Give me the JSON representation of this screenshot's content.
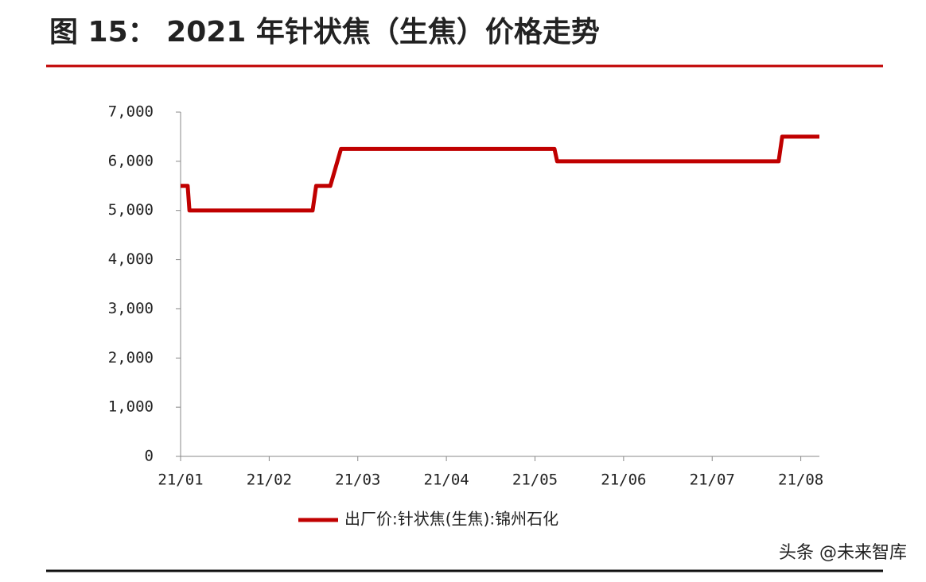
{
  "chart_data": {
    "type": "line",
    "title": "图 15： 2021 年针状焦（生焦）价格走势",
    "watermark": "头条 @未来智库",
    "series": [
      {
        "name": "出厂价:针状焦(生焦):锦州石化",
        "color": "#c00000",
        "x": [
          0,
          0.08,
          0.1,
          1.49,
          1.53,
          1.69,
          1.81,
          4.22,
          4.25,
          6.75,
          6.79,
          7.21
        ],
        "values": [
          5500,
          5500,
          5000,
          5000,
          5500,
          5500,
          6250,
          6250,
          6000,
          6000,
          6500,
          6500
        ]
      }
    ],
    "xlim": [
      0,
      7.21
    ],
    "xticks": [
      {
        "value": 0,
        "label": "21/01"
      },
      {
        "value": 1,
        "label": "21/02"
      },
      {
        "value": 2,
        "label": "21/03"
      },
      {
        "value": 3,
        "label": "21/04"
      },
      {
        "value": 4,
        "label": "21/05"
      },
      {
        "value": 5,
        "label": "21/06"
      },
      {
        "value": 6,
        "label": "21/07"
      },
      {
        "value": 7,
        "label": "21/08"
      }
    ],
    "ylim": [
      0,
      7000
    ],
    "yticks": [
      0,
      {
        "value": 1000,
        "label": "1,000"
      },
      {
        "value": 2000,
        "label": "2,000"
      },
      {
        "value": 3000,
        "label": "3,000"
      },
      {
        "value": 4000,
        "label": "4,000"
      },
      {
        "value": 5000,
        "label": "5,000"
      },
      {
        "value": 6000,
        "label": "6,000"
      },
      {
        "value": 7000,
        "label": "7,000"
      }
    ]
  }
}
